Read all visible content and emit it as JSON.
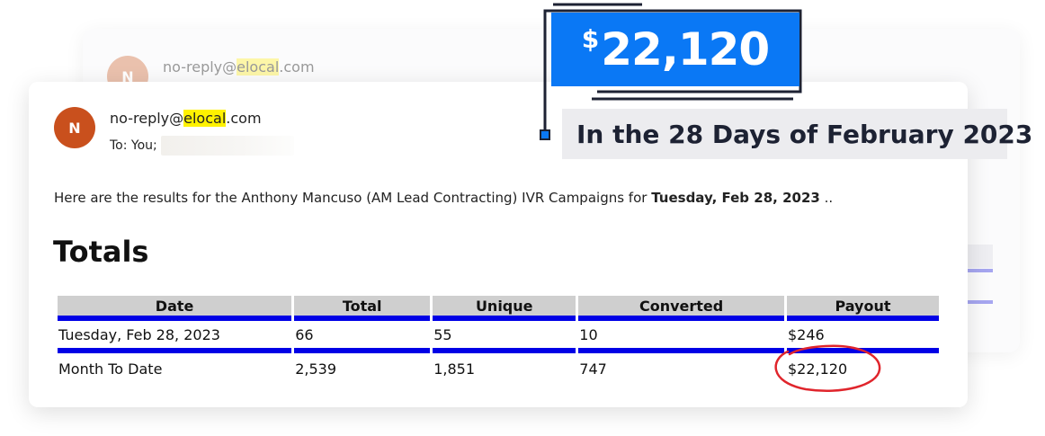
{
  "background_email": {
    "avatar_letter": "N",
    "sender_prefix": "no-reply@",
    "sender_highlight": "elocal",
    "sender_suffix": ".com"
  },
  "email": {
    "avatar_letter": "N",
    "sender_prefix": "no-reply@",
    "sender_highlight": "elocal",
    "sender_suffix": ".com",
    "to_label": "To:  You;",
    "intro_text": "Here are the results for the Anthony Mancuso (AM Lead Contracting) IVR Campaigns for ",
    "intro_bold": "Tuesday, Feb 28, 2023",
    "intro_suffix": " ..",
    "totals_title": "Totals",
    "table": {
      "headers": [
        "Date",
        "Total",
        "Unique",
        "Converted",
        "Payout"
      ],
      "rows": [
        [
          "Tuesday, Feb 28, 2023",
          "66",
          "55",
          "10",
          "$246"
        ],
        [
          "Month To Date",
          "2,539",
          "1,851",
          "747",
          "$22,120"
        ]
      ]
    }
  },
  "callout": {
    "currency_symbol": "$",
    "amount": "22,120",
    "period_text": "In the 28 Days of February 2023"
  },
  "colors": {
    "callout_blue": "#0a78f5",
    "table_rule_blue": "#0000e6",
    "highlight_yellow": "#fff200",
    "circle_red": "#e0252c",
    "avatar_orange": "#c9501d"
  }
}
